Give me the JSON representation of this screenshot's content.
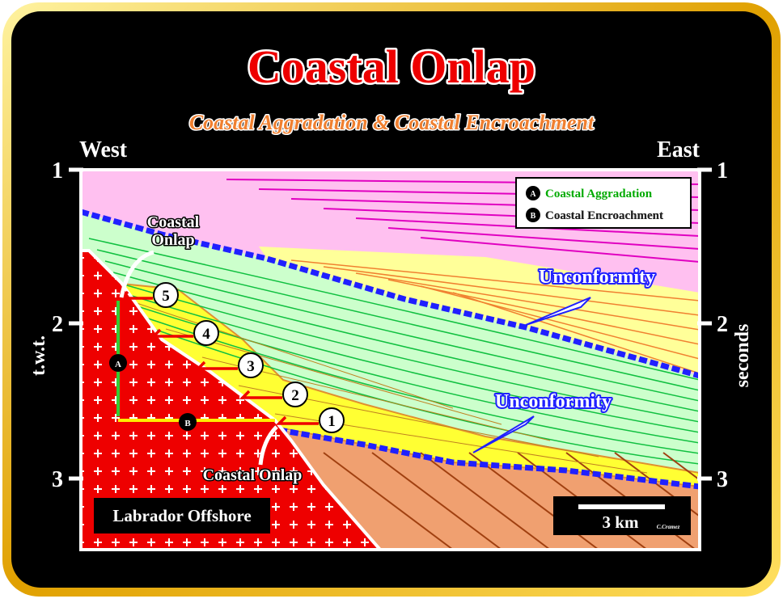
{
  "header": {
    "title": "Coastal Onlap",
    "subtitle": "Coastal Aggradation & Coastal Encroachment"
  },
  "axes": {
    "west": "West",
    "east": "East",
    "left_ticks": [
      "1",
      "2",
      "3"
    ],
    "right_ticks": [
      "1",
      "2",
      "3"
    ],
    "left_label": "t.w.t.",
    "right_label": "seconds"
  },
  "legend": [
    {
      "marker": "A",
      "label": "Coastal Aggradation"
    },
    {
      "marker": "B",
      "label": "Coastal Encroachment"
    }
  ],
  "annotations": {
    "onlap_top": [
      "Coastal",
      "Onlap"
    ],
    "onlap_bottom": "Coastal Onlap",
    "unconformity_upper": "Unconformity",
    "unconformity_lower": "Unconformity",
    "steps": [
      "1",
      "2",
      "3",
      "4",
      "5"
    ],
    "marker_a": "A",
    "marker_b": "B",
    "location": "Labrador Offshore",
    "scale": "3 km",
    "credit": "C.Cramez"
  }
}
